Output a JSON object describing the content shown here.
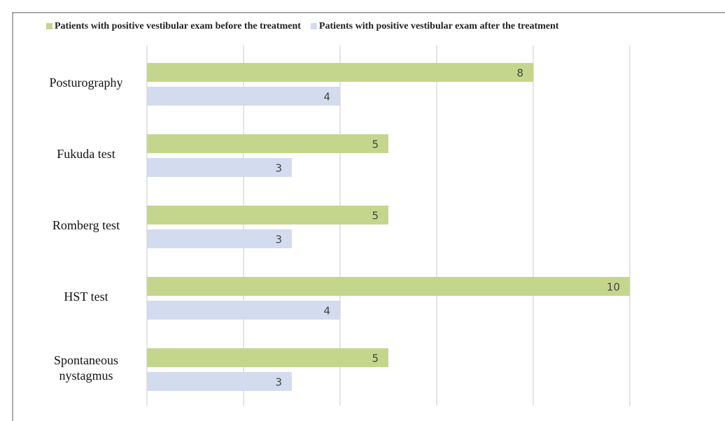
{
  "chart_data": {
    "type": "bar",
    "orientation": "horizontal",
    "categories": [
      "Posturography",
      "Fukuda test",
      "Romberg test",
      "HST test",
      "Spontaneous nystagmus"
    ],
    "series": [
      {
        "name": "Patients with positive vestibular exam before the treatment",
        "color": "#c4d68c",
        "values": [
          8,
          5,
          5,
          10,
          5
        ]
      },
      {
        "name": "Patients with positive vestibular exam after the treatment",
        "color": "#d3dcee",
        "values": [
          4,
          3,
          3,
          4,
          3
        ]
      }
    ],
    "xlim": [
      0,
      12
    ],
    "xticks": [
      0,
      2,
      4,
      6,
      8,
      10,
      12
    ],
    "grid": true,
    "legend": "top"
  }
}
